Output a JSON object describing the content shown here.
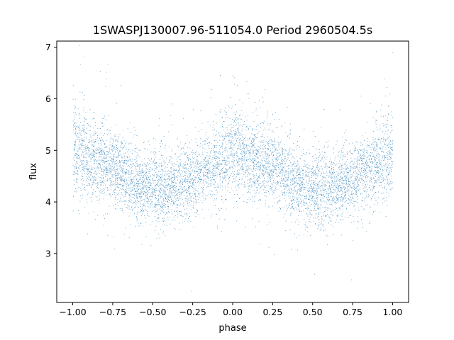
{
  "chart_data": {
    "type": "scatter",
    "title": "1SWASPJ130007.96-511054.0 Period 2960504.5s",
    "xlabel": "phase",
    "ylabel": "flux",
    "xlim": [
      -1.1,
      1.1
    ],
    "ylim": [
      2.05,
      7.12
    ],
    "x_ticks": [
      -1.0,
      -0.75,
      -0.5,
      -0.25,
      0.0,
      0.25,
      0.5,
      0.75,
      1.0
    ],
    "x_tick_labels": [
      "−1.00",
      "−0.75",
      "−0.50",
      "−0.25",
      "0.00",
      "0.25",
      "0.50",
      "0.75",
      "1.00"
    ],
    "y_ticks": [
      3,
      4,
      5,
      6,
      7
    ],
    "y_tick_labels": [
      "3",
      "4",
      "5",
      "6",
      "7"
    ],
    "grid": false,
    "marker_color": "#1f77b4",
    "series": [
      {
        "phase_range": [
          -1.0,
          1.0
        ],
        "profile_phase": [
          0.0,
          0.05,
          0.1,
          0.15,
          0.2,
          0.25,
          0.3,
          0.35,
          0.4,
          0.45,
          0.5,
          0.55,
          0.6,
          0.65,
          0.7,
          0.75,
          0.8,
          0.85,
          0.9,
          0.95,
          1.0
        ],
        "profile_median_flux": [
          5.05,
          5.0,
          4.85,
          4.8,
          4.75,
          4.7,
          4.6,
          4.45,
          4.35,
          4.3,
          4.3,
          4.2,
          4.3,
          4.35,
          4.4,
          4.45,
          4.55,
          4.65,
          4.75,
          4.85,
          5.0
        ],
        "profile_spread": [
          0.45,
          0.45,
          0.4,
          0.4,
          0.4,
          0.35,
          0.35,
          0.35,
          0.35,
          0.35,
          0.35,
          0.4,
          0.35,
          0.35,
          0.35,
          0.35,
          0.35,
          0.35,
          0.4,
          0.45,
          0.45
        ]
      }
    ]
  }
}
